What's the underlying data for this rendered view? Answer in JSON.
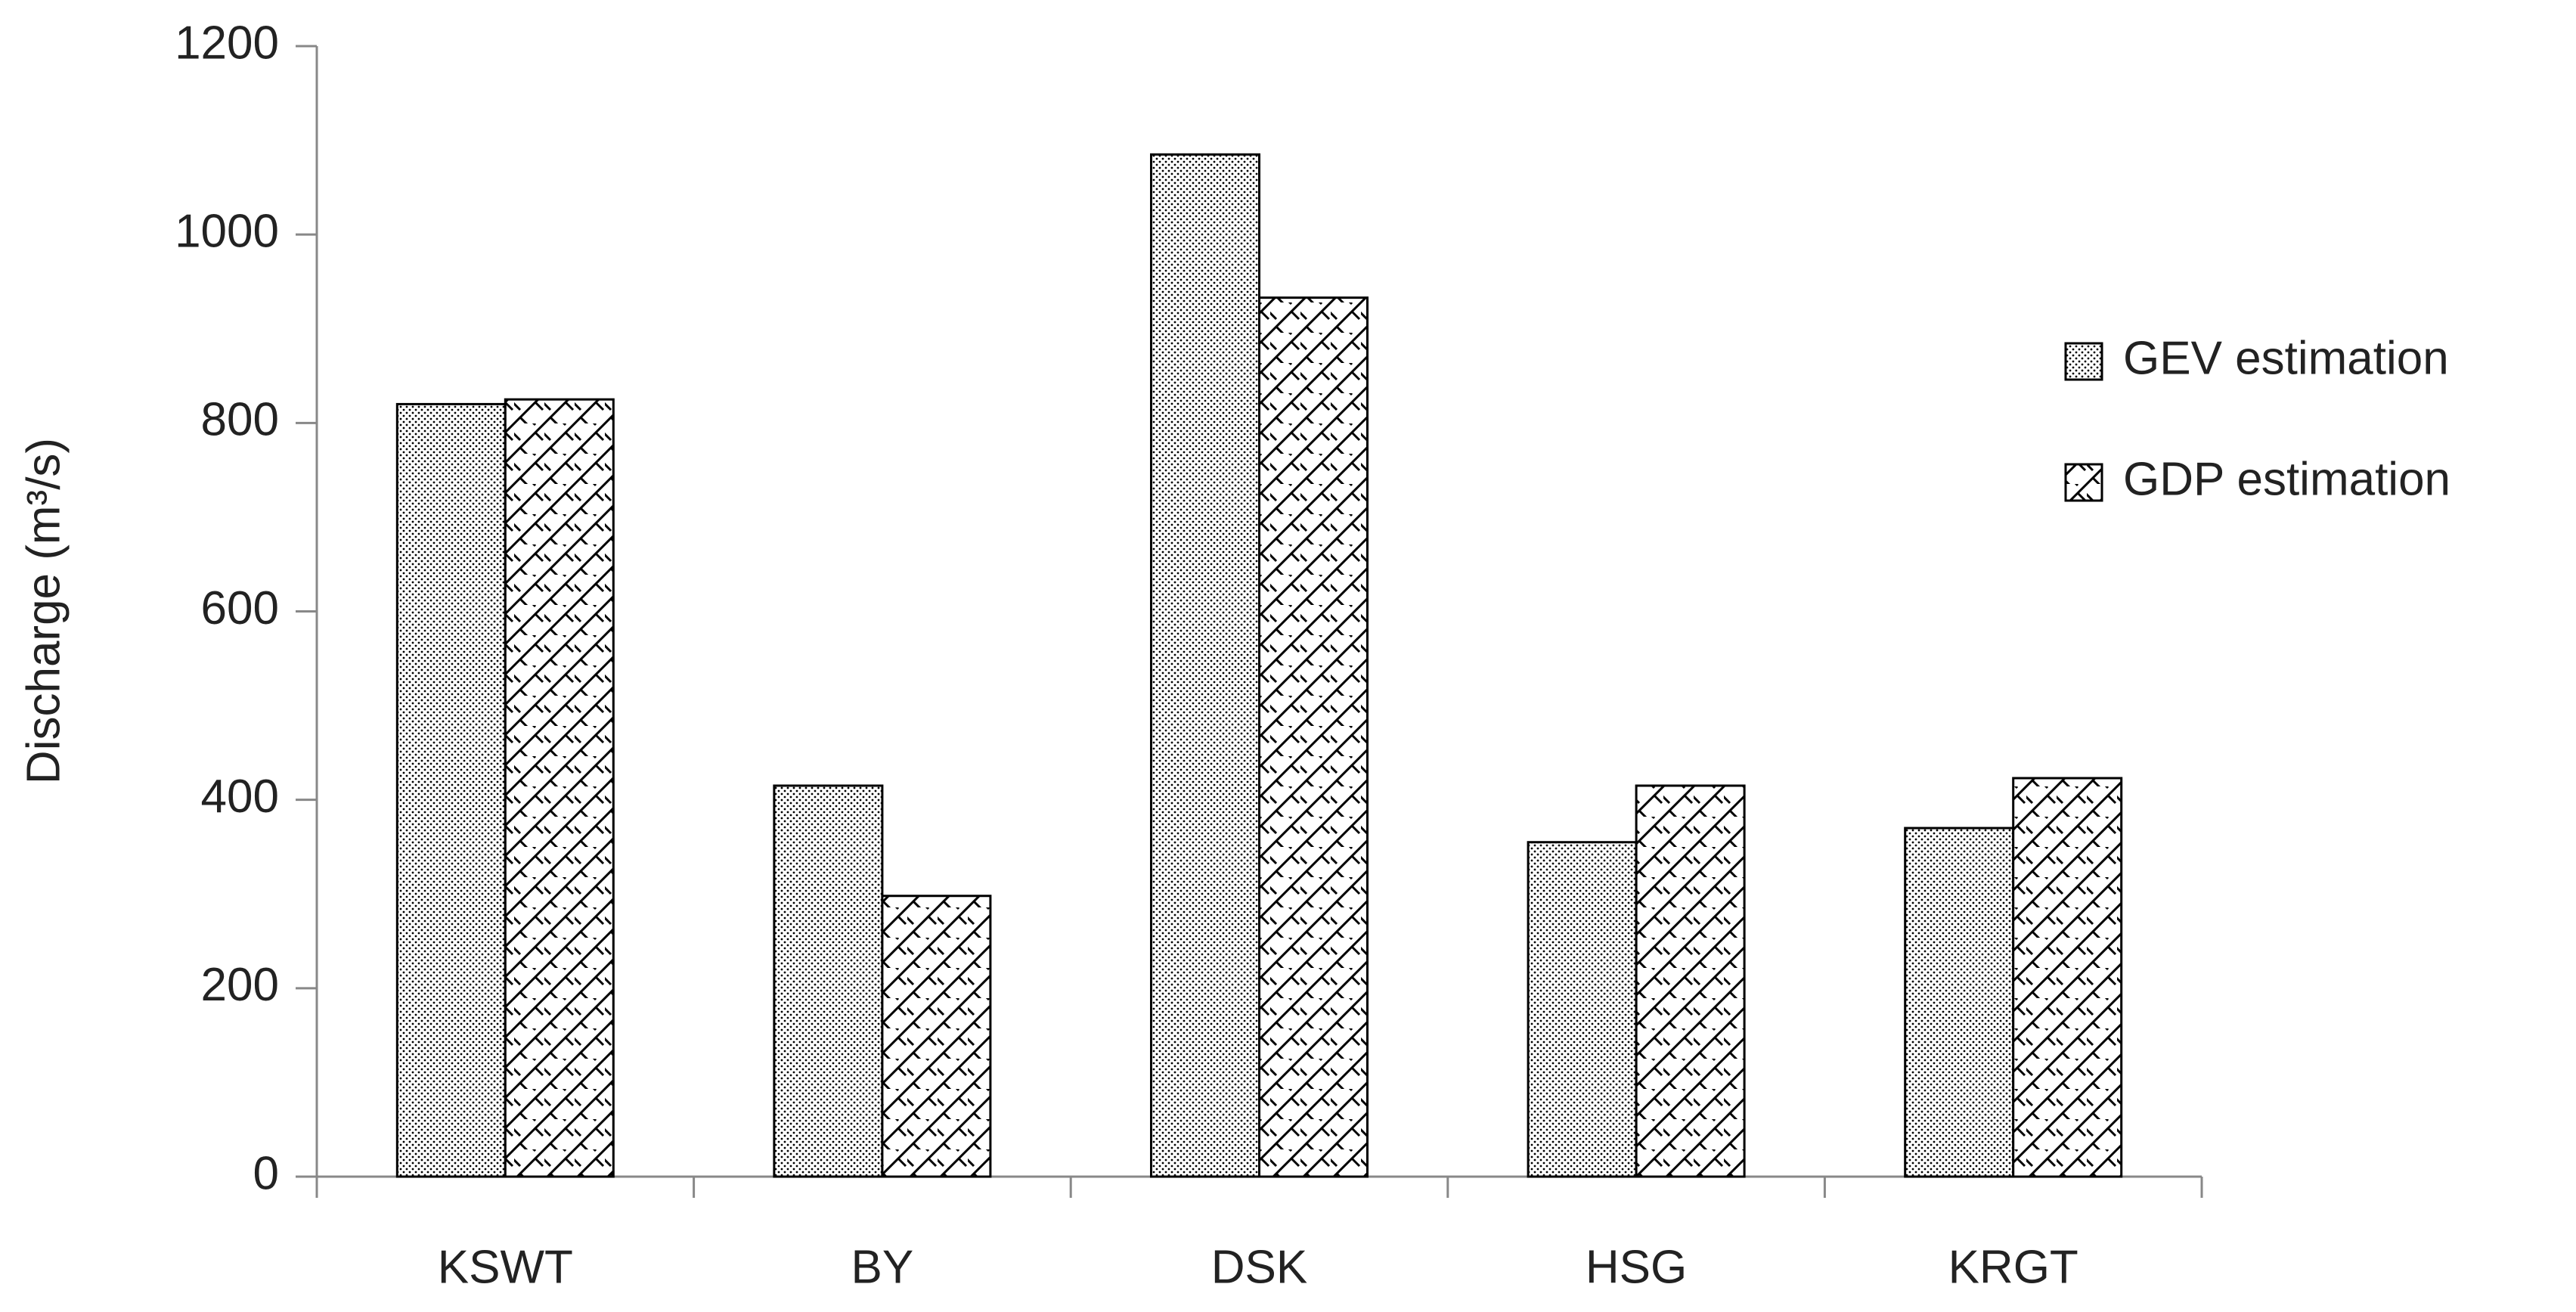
{
  "chart_data": {
    "type": "bar",
    "y_label": "Discharge (m³/s)",
    "categories": [
      "KSWT",
      "BY",
      "DSK",
      "HSG",
      "KRGT"
    ],
    "series": [
      {
        "name": "GEV estimation",
        "color": "#000000",
        "pattern": "dots",
        "values": [
          820,
          415,
          1085,
          355,
          370
        ]
      },
      {
        "name": "GDP estimation",
        "color": "#000000",
        "pattern": "hatch",
        "values": [
          825,
          298,
          933,
          415,
          423
        ]
      }
    ],
    "ylim": [
      0,
      1200
    ],
    "yticks": [
      0,
      200,
      400,
      600,
      800,
      1000,
      1200
    ],
    "grid": false,
    "legend": "right"
  }
}
